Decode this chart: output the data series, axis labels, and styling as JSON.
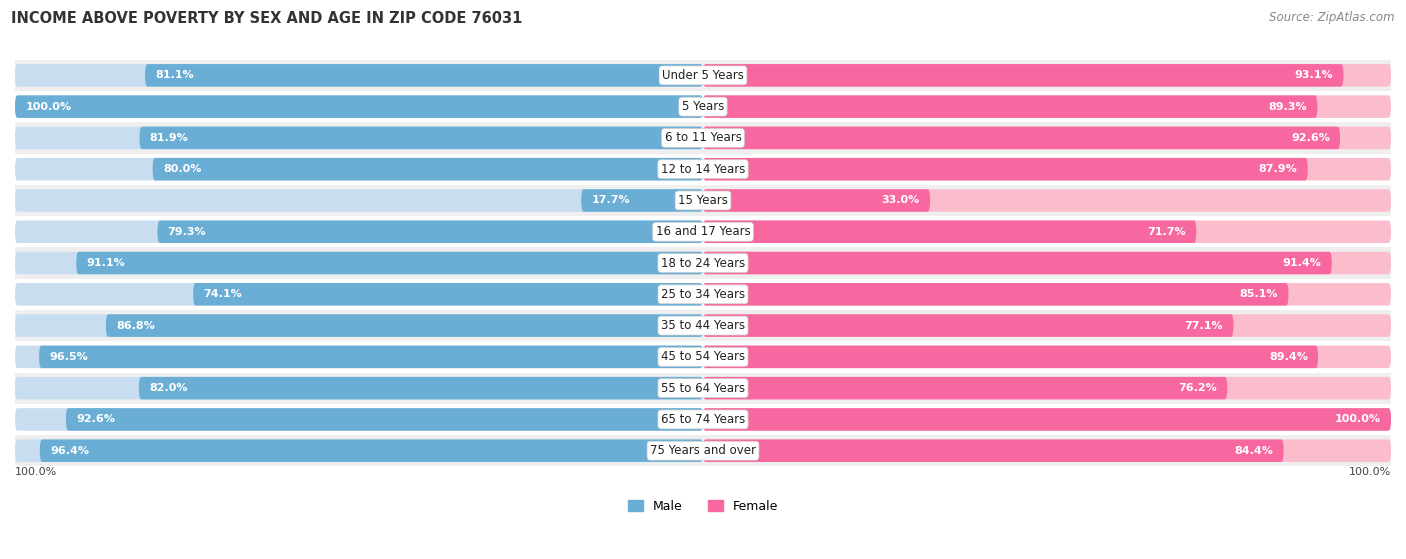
{
  "title": "INCOME ABOVE POVERTY BY SEX AND AGE IN ZIP CODE 76031",
  "source": "Source: ZipAtlas.com",
  "categories": [
    "Under 5 Years",
    "5 Years",
    "6 to 11 Years",
    "12 to 14 Years",
    "15 Years",
    "16 and 17 Years",
    "18 to 24 Years",
    "25 to 34 Years",
    "35 to 44 Years",
    "45 to 54 Years",
    "55 to 64 Years",
    "65 to 74 Years",
    "75 Years and over"
  ],
  "male_values": [
    81.1,
    100.0,
    81.9,
    80.0,
    17.7,
    79.3,
    91.1,
    74.1,
    86.8,
    96.5,
    82.0,
    92.6,
    96.4
  ],
  "female_values": [
    93.1,
    89.3,
    92.6,
    87.9,
    33.0,
    71.7,
    91.4,
    85.1,
    77.1,
    89.4,
    76.2,
    100.0,
    84.4
  ],
  "male_color": "#6aaed6",
  "female_color": "#f768a1",
  "male_color_light": "#c8ddf0",
  "female_color_light": "#fbbccc",
  "row_color_odd": "#efefef",
  "row_color_even": "#ffffff",
  "max_value": 100.0,
  "bar_height": 0.72,
  "legend_male": "Male",
  "legend_female": "Female",
  "title_fontsize": 10.5,
  "source_fontsize": 8.5,
  "label_fontsize": 8.0,
  "category_fontsize": 8.5,
  "bottom_label": "100.0%"
}
